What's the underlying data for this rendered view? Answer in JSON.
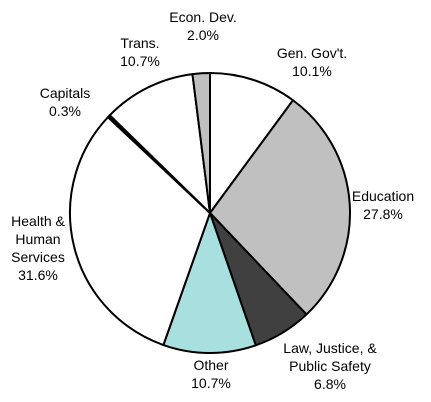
{
  "chart_data": {
    "type": "pie",
    "categories": [
      "Gen. Gov't.",
      "Education",
      "Law, Justice, &\nPublic Safety",
      "Other",
      "Health &\nHuman\nServices",
      "Capitals",
      "Trans.",
      "Econ. Dev."
    ],
    "values": [
      10.1,
      27.8,
      6.8,
      10.7,
      31.6,
      0.3,
      10.7,
      2.0
    ],
    "value_labels": [
      "10.1%",
      "27.8%",
      "6.8%",
      "10.7%",
      "31.6%",
      "0.3%",
      "10.7%",
      "2.0%"
    ],
    "colors": [
      "#ffffff",
      "#c0c0c0",
      "#404040",
      "#a8e0e0",
      "#ffffff",
      "#000000",
      "#ffffff",
      "#c0c0c0"
    ]
  }
}
